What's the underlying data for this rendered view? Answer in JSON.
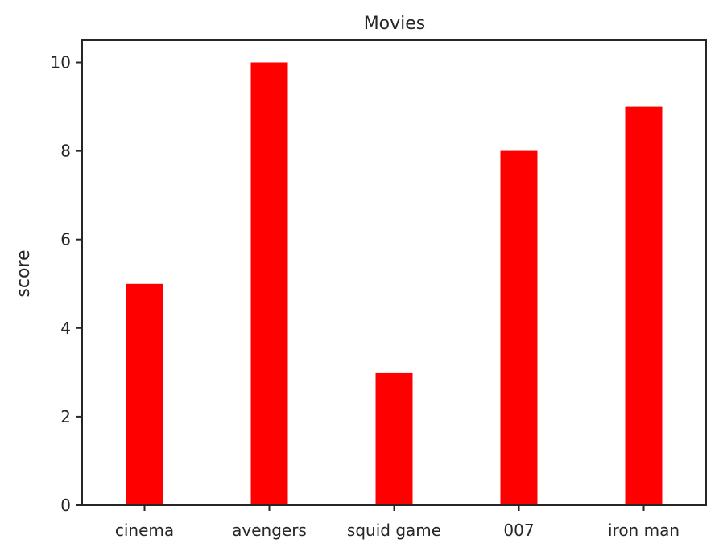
{
  "chart_data": {
    "type": "bar",
    "title": "Movies",
    "xlabel": "",
    "ylabel": "score",
    "categories": [
      "cinema",
      "avengers",
      "squid game",
      "007",
      "iron man"
    ],
    "values": [
      5,
      10,
      3,
      8,
      9
    ],
    "ylim": [
      0,
      10.5
    ],
    "yticks": [
      0,
      2,
      4,
      6,
      8,
      10
    ],
    "bar_color": "#ff0000",
    "grid": false,
    "legend": "none"
  }
}
